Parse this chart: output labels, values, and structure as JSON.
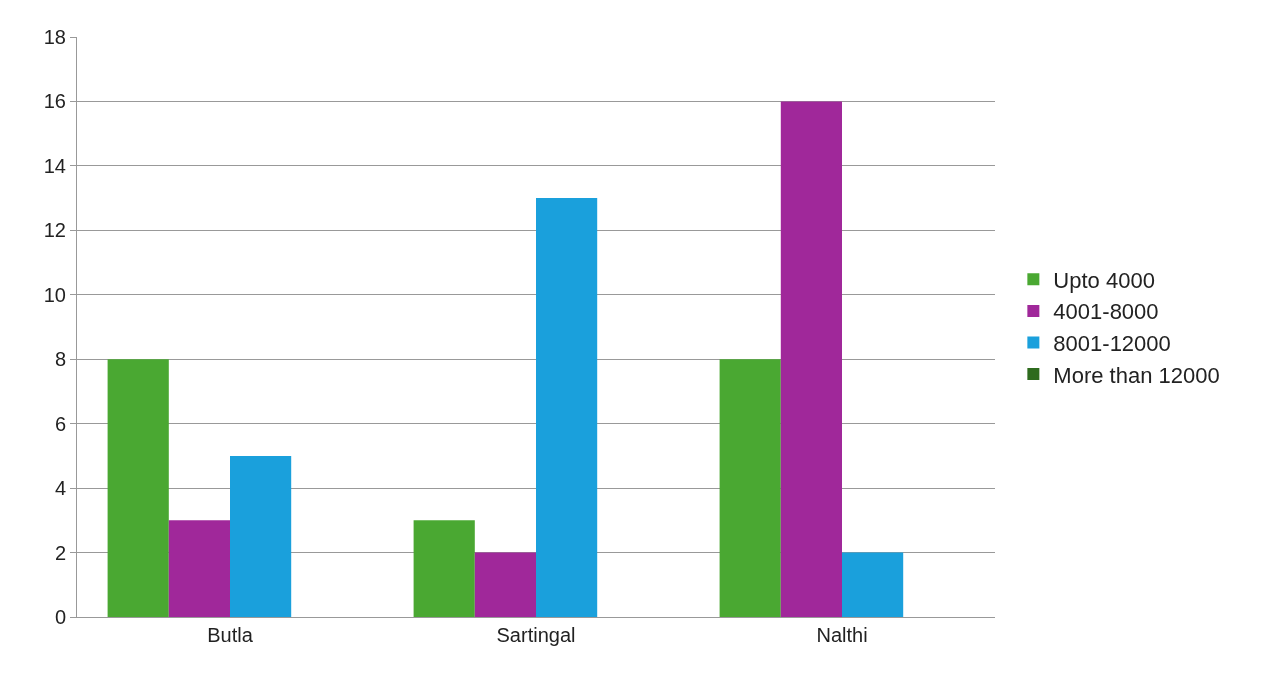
{
  "chart_data": {
    "type": "bar",
    "categories": [
      "Butla",
      "Sartingal",
      "Nalthi"
    ],
    "series": [
      {
        "name": "Upto 4000",
        "color": "#4aa832",
        "values": [
          8,
          3,
          8
        ]
      },
      {
        "name": "4001-8000",
        "color": "#a0289a",
        "values": [
          3,
          2,
          16
        ]
      },
      {
        "name": "8001-12000",
        "color": "#1aa0dc",
        "values": [
          5,
          13,
          2
        ]
      },
      {
        "name": "More than 12000",
        "color": "#2e6b1e",
        "values": [
          0,
          0,
          0
        ]
      }
    ],
    "ylim": [
      0,
      18
    ],
    "yticks": [
      0,
      2,
      4,
      6,
      8,
      10,
      12,
      14,
      16,
      18
    ],
    "grid": "y",
    "legend": "right"
  }
}
